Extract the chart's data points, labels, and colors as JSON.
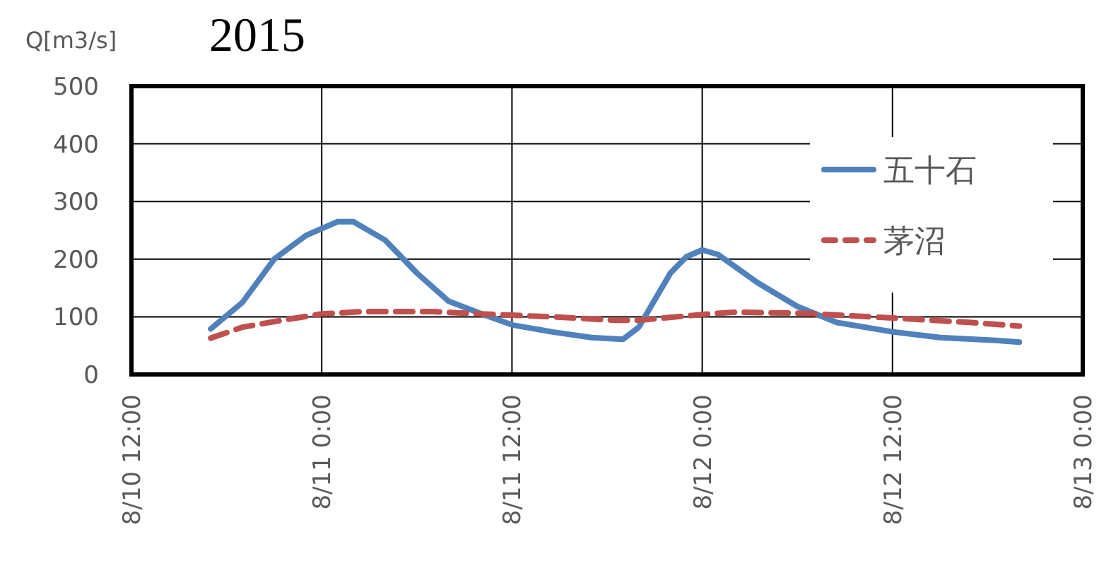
{
  "chart_data": {
    "type": "line",
    "title": "2015",
    "ylabel": "Q[m3/s]",
    "xlim": [
      "2015-08-10T12:00",
      "2015-08-13T00:00"
    ],
    "xticks": [
      {
        "value": "2015-08-10T12:00",
        "label": "8/10 12:00"
      },
      {
        "value": "2015-08-11T00:00",
        "label": "8/11 0:00"
      },
      {
        "value": "2015-08-11T12:00",
        "label": "8/11 12:00"
      },
      {
        "value": "2015-08-12T00:00",
        "label": "8/12 0:00"
      },
      {
        "value": "2015-08-12T12:00",
        "label": "8/12 12:00"
      },
      {
        "value": "2015-08-13T00:00",
        "label": "8/13 0:00"
      }
    ],
    "ylim": [
      0,
      500
    ],
    "yticks": [
      0,
      100,
      200,
      300,
      400,
      500
    ],
    "grid": true,
    "legend": "top right",
    "marker": "none",
    "series": [
      {
        "name": "五十石",
        "color": "#4f81bd",
        "line_style": "solid",
        "x": [
          "2015-08-10T17:00",
          "2015-08-10T19:00",
          "2015-08-10T21:00",
          "2015-08-10T23:00",
          "2015-08-11T01:00",
          "2015-08-11T02:00",
          "2015-08-11T04:00",
          "2015-08-11T06:00",
          "2015-08-11T08:00",
          "2015-08-11T10:00",
          "2015-08-11T12:00",
          "2015-08-11T14:30",
          "2015-08-11T17:00",
          "2015-08-11T19:00",
          "2015-08-11T20:00",
          "2015-08-11T22:00",
          "2015-08-11T23:00",
          "2015-08-12T00:00",
          "2015-08-12T01:00",
          "2015-08-12T03:30",
          "2015-08-12T06:00",
          "2015-08-12T08:30",
          "2015-08-12T12:00",
          "2015-08-12T15:00",
          "2015-08-12T18:30",
          "2015-08-12T20:00"
        ],
        "values": [
          79,
          125,
          200,
          241,
          265,
          265,
          233,
          176,
          127,
          106,
          86,
          74,
          64,
          61,
          82,
          176,
          204,
          216,
          208,
          159,
          118,
          90,
          74,
          64,
          59,
          56
        ]
      },
      {
        "name": "茅沼",
        "color": "#c0504d",
        "line_style": "dashed",
        "x": [
          "2015-08-10T17:00",
          "2015-08-10T19:00",
          "2015-08-10T21:30",
          "2015-08-11T00:00",
          "2015-08-11T02:30",
          "2015-08-11T07:00",
          "2015-08-11T10:00",
          "2015-08-11T14:30",
          "2015-08-11T18:30",
          "2015-08-11T20:00",
          "2015-08-12T00:00",
          "2015-08-12T02:00",
          "2015-08-12T06:30",
          "2015-08-12T12:00",
          "2015-08-12T17:00",
          "2015-08-12T20:00"
        ],
        "values": [
          63,
          82,
          94,
          105,
          109,
          109,
          105,
          100,
          94,
          94,
          104,
          108,
          106,
          98,
          90,
          84
        ]
      }
    ]
  }
}
